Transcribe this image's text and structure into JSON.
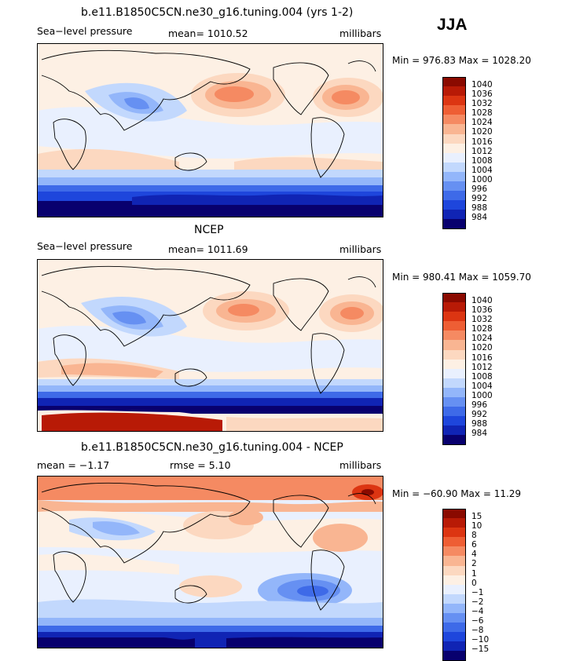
{
  "season": "JJA",
  "colors": {
    "scale": [
      "#08006e",
      "#1024b4",
      "#1e46dc",
      "#3e6ae8",
      "#6690f2",
      "#93b6fa",
      "#c2d8fd",
      "#e9f0fe",
      "#fdf0e4",
      "#fcd8c0",
      "#f9b592",
      "#f58a62",
      "#ee5e34",
      "#dc3512",
      "#b81a06",
      "#8a0a00"
    ]
  },
  "panels": [
    {
      "title": "b.e11.B1850C5CN.ne30_g16.tuning.004 (yrs 1-2)",
      "left_label": "Sea−level pressure",
      "center_label": "mean= 1010.52",
      "units": "millibars",
      "minmax": "Min = 976.83 Max = 1028.20",
      "legend": [
        "1040",
        "1036",
        "1032",
        "1028",
        "1024",
        "1020",
        "1016",
        "1012",
        "1008",
        "1004",
        "1000",
        "996",
        "992",
        "988",
        "984"
      ]
    },
    {
      "title": "NCEP",
      "left_label": "Sea−level pressure",
      "center_label": "mean= 1011.69",
      "units": "millibars",
      "minmax": "Min = 980.41 Max = 1059.70",
      "legend": [
        "1040",
        "1036",
        "1032",
        "1028",
        "1024",
        "1020",
        "1016",
        "1012",
        "1008",
        "1004",
        "1000",
        "996",
        "992",
        "988",
        "984"
      ]
    },
    {
      "title": "b.e11.B1850C5CN.ne30_g16.tuning.004 - NCEP",
      "left_label": "mean =  −1.17",
      "center_label": "rmse =   5.10",
      "units": "millibars",
      "minmax": "Min = −60.90 Max =  11.29",
      "legend": [
        "15",
        "10",
        "8",
        "6",
        "4",
        "2",
        "1",
        "0",
        "−1",
        "−2",
        "−4",
        "−6",
        "−8",
        "−10",
        "−15"
      ]
    }
  ]
}
